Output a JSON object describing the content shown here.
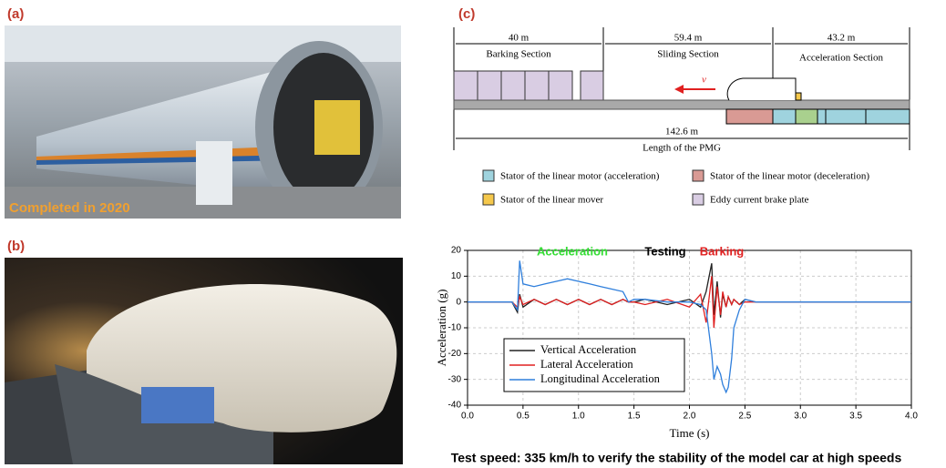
{
  "panels": {
    "a": {
      "label": "(a)",
      "caption": "Completed in 2020"
    },
    "b": {
      "label": "(b)"
    },
    "c": {
      "label": "(c)",
      "dimensions": [
        "40 m",
        "59.4 m",
        "43.2 m"
      ],
      "sections": [
        "Barking Section",
        "Sliding Section",
        "Acceleration Section"
      ],
      "speed_symbol": "v",
      "total_length": "142.6 m",
      "total_label": "Length of the PMG",
      "legend": [
        "Stator of the linear motor (acceleration)",
        "Stator of the linear motor (deceleration)",
        "Stator of the linear mover",
        "Eddy current brake plate"
      ]
    }
  },
  "chart_data": {
    "type": "line",
    "x_label": "Time (s)",
    "y_label": "Acceleration (g)",
    "xlim": [
      0,
      4
    ],
    "ylim": [
      -40,
      20
    ],
    "xticks": [
      {
        "value": 0,
        "label": "0.0"
      },
      {
        "value": 0.5,
        "label": "0.5"
      },
      {
        "value": 1,
        "label": "1.0"
      },
      {
        "value": 1.5,
        "label": "1.5"
      },
      {
        "value": 2,
        "label": "2.0"
      },
      {
        "value": 2.5,
        "label": "2.5"
      },
      {
        "value": 3,
        "label": "3.0"
      },
      {
        "value": 3.5,
        "label": "3.5"
      },
      {
        "value": 4,
        "label": "4.0"
      }
    ],
    "yticks": [
      -40,
      -30,
      -20,
      -10,
      0,
      10,
      20
    ],
    "grid": true,
    "legend": "lower left",
    "annotations": [
      {
        "text": "Acceleration",
        "color": "#33dd33"
      },
      {
        "text": "Testing",
        "color": "#000000"
      },
      {
        "text": "Barking",
        "color": "#e02020"
      }
    ],
    "x": [
      0,
      0.4,
      0.45,
      0.47,
      0.5,
      0.6,
      0.7,
      0.8,
      0.9,
      1.0,
      1.1,
      1.2,
      1.3,
      1.4,
      1.45,
      1.5,
      1.6,
      1.8,
      2.0,
      2.1,
      2.15,
      2.2,
      2.22,
      2.25,
      2.28,
      2.3,
      2.33,
      2.35,
      2.38,
      2.4,
      2.45,
      2.5,
      2.6,
      2.8,
      3.0,
      3.5,
      4.0
    ],
    "series": [
      {
        "name": "Vertical Acceleration",
        "color": "#222222",
        "values": [
          0,
          0,
          -4,
          3,
          -2,
          1,
          -1,
          1,
          -1,
          1,
          -1,
          1,
          -1,
          1,
          0,
          0,
          1,
          -1,
          1,
          -2,
          4,
          15,
          -5,
          8,
          -6,
          3,
          -2,
          2,
          -1,
          1,
          -1,
          1,
          0,
          0,
          0,
          0,
          0
        ]
      },
      {
        "name": "Lateral Acceleration",
        "color": "#e02020",
        "values": [
          0,
          0,
          -2,
          2,
          -1,
          1,
          -1,
          1,
          -1,
          1,
          -1,
          1,
          -1,
          1,
          0,
          0,
          -1,
          1,
          -2,
          3,
          -8,
          10,
          -10,
          6,
          -5,
          4,
          -2,
          2,
          -1,
          1,
          -1,
          0,
          0,
          0,
          0,
          0,
          0
        ]
      },
      {
        "name": "Longitudinal Acceleration",
        "color": "#2f7fdc",
        "values": [
          0,
          0,
          -3,
          16,
          7,
          6,
          7,
          8,
          9,
          8,
          7,
          6,
          5,
          4,
          0,
          1,
          1,
          0,
          0,
          -1,
          -3,
          -20,
          -30,
          -25,
          -28,
          -32,
          -35,
          -33,
          -22,
          -10,
          -3,
          1,
          0,
          0,
          0,
          0,
          0
        ]
      }
    ]
  },
  "caption": "Test speed: 335 km/h to verify the stability of the model car at high speeds"
}
